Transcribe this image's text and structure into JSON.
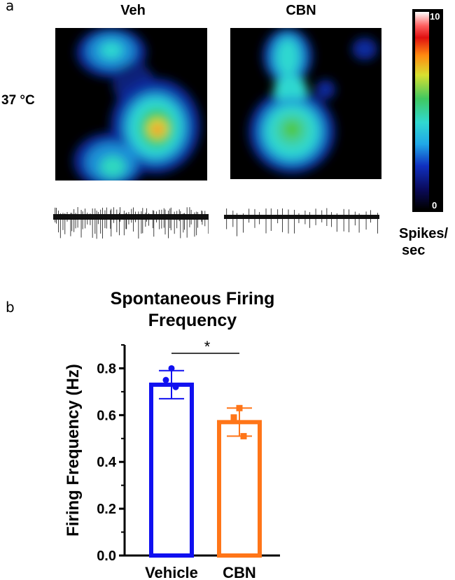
{
  "panel_a": {
    "letter": "a",
    "condition_labels": [
      "Veh",
      "CBN"
    ],
    "temperature_label": "37 °C",
    "colorbar": {
      "max": "10",
      "min": "0",
      "label_line1": "Spikes/",
      "label_line2": "sec"
    }
  },
  "panel_b": {
    "letter": "b"
  },
  "chart_data": {
    "type": "bar",
    "title_line1": "Spontaneous Firing",
    "title_line2": "Frequency",
    "categories": [
      "Vehicle",
      "CBN"
    ],
    "values": [
      0.73,
      0.57
    ],
    "error_low": [
      0.67,
      0.51
    ],
    "error_high": [
      0.79,
      0.63
    ],
    "points": [
      [
        0.8,
        0.75,
        0.72
      ],
      [
        0.63,
        0.59,
        0.51
      ]
    ],
    "colors": [
      "#1010f0",
      "#ff7518"
    ],
    "ylabel": "Firing Frequency (Hz)",
    "xlabel": "",
    "ylim": [
      0,
      0.9
    ],
    "yticks": [
      "0.0",
      "0.2",
      "0.4",
      "0.6",
      "0.8"
    ],
    "significance": "*"
  }
}
